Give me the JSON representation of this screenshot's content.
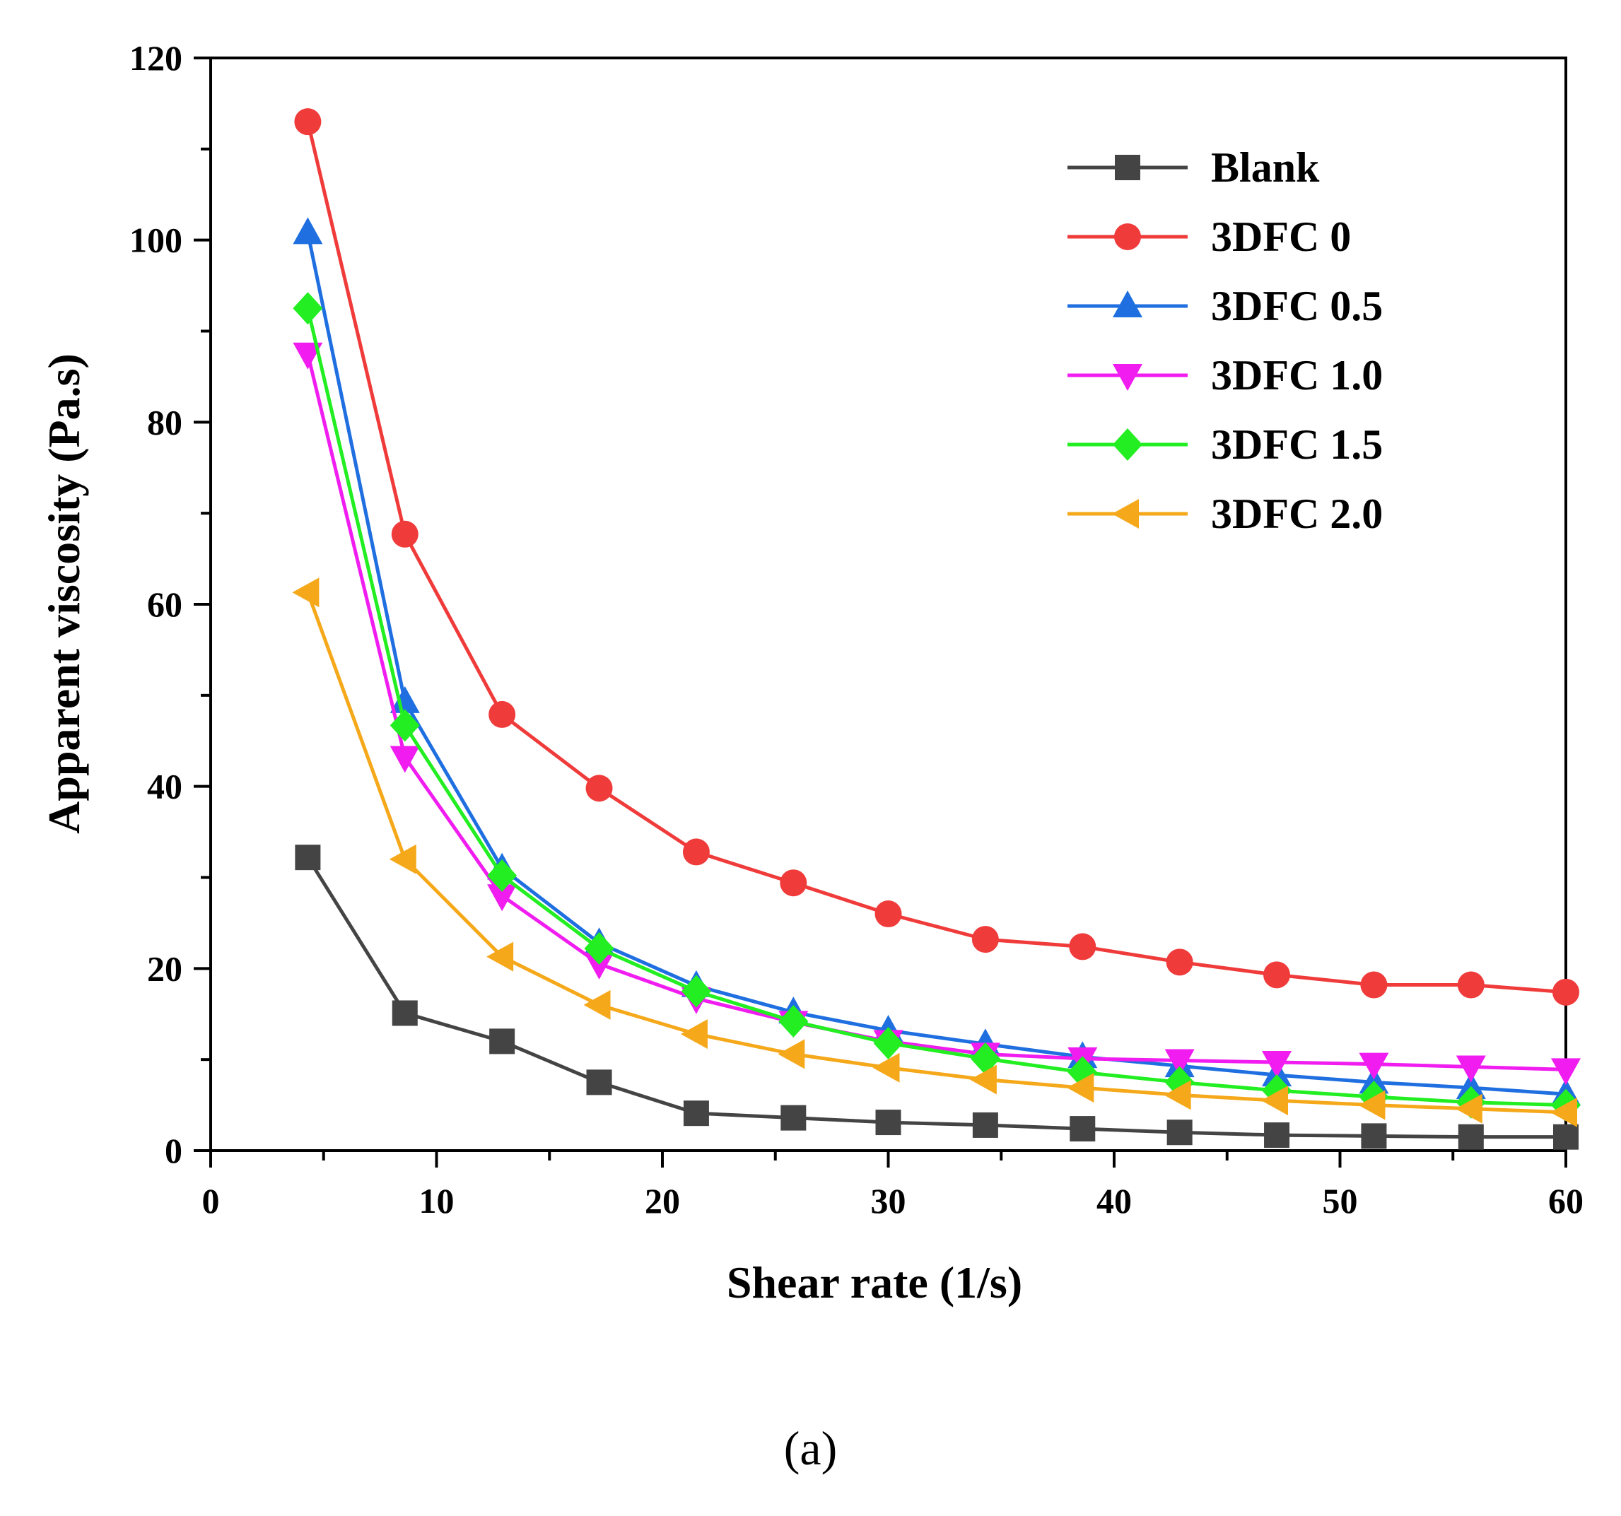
{
  "caption": "(a)",
  "chart_data": {
    "type": "line",
    "title": "",
    "xlabel": "Shear rate (1/s)",
    "ylabel": "Apparent viscosity (Pa.s)",
    "xlim": [
      0,
      60
    ],
    "ylim": [
      0,
      120
    ],
    "xticks": [
      0,
      10,
      20,
      30,
      40,
      50,
      60
    ],
    "yticks": [
      0,
      20,
      40,
      60,
      80,
      100,
      120
    ],
    "grid": false,
    "legend_position": "top-right",
    "x": [
      4.3,
      8.6,
      12.9,
      17.2,
      21.5,
      25.8,
      30.0,
      34.3,
      38.6,
      42.9,
      47.2,
      51.5,
      55.8,
      60.0
    ],
    "series": [
      {
        "name": "Blank",
        "color": "#444444",
        "marker": "square",
        "values": [
          32.2,
          15.1,
          12.0,
          7.5,
          4.1,
          3.6,
          3.1,
          2.8,
          2.4,
          2.0,
          1.7,
          1.6,
          1.5,
          1.5
        ]
      },
      {
        "name": "3DFC 0",
        "color": "#f03b3b",
        "marker": "circle",
        "values": [
          113.0,
          67.7,
          47.9,
          39.8,
          32.8,
          29.4,
          26.0,
          23.2,
          22.4,
          20.7,
          19.3,
          18.2,
          18.2,
          17.4
        ]
      },
      {
        "name": "3DFC 0.5",
        "color": "#1f6fe0",
        "marker": "triangle-up",
        "values": [
          100.8,
          49.3,
          31.0,
          22.8,
          18.1,
          15.2,
          13.2,
          11.7,
          10.3,
          9.3,
          8.3,
          7.5,
          6.9,
          6.2
        ]
      },
      {
        "name": "3DFC 1.0",
        "color": "#f01cf0",
        "marker": "triangle-down",
        "values": [
          87.5,
          43.2,
          28.0,
          20.5,
          16.7,
          14.1,
          12.0,
          10.6,
          10.1,
          9.9,
          9.7,
          9.5,
          9.2,
          8.9
        ]
      },
      {
        "name": "3DFC 1.5",
        "color": "#22ee22",
        "marker": "diamond",
        "values": [
          92.5,
          46.7,
          30.2,
          22.2,
          17.5,
          14.2,
          11.8,
          10.1,
          8.6,
          7.5,
          6.6,
          5.9,
          5.3,
          5.0
        ]
      },
      {
        "name": "3DFC 2.0",
        "color": "#f5a81a",
        "marker": "triangle-left",
        "values": [
          61.3,
          32.0,
          21.3,
          16.0,
          12.8,
          10.6,
          9.1,
          7.8,
          6.9,
          6.1,
          5.5,
          5.0,
          4.6,
          4.2
        ]
      }
    ]
  }
}
